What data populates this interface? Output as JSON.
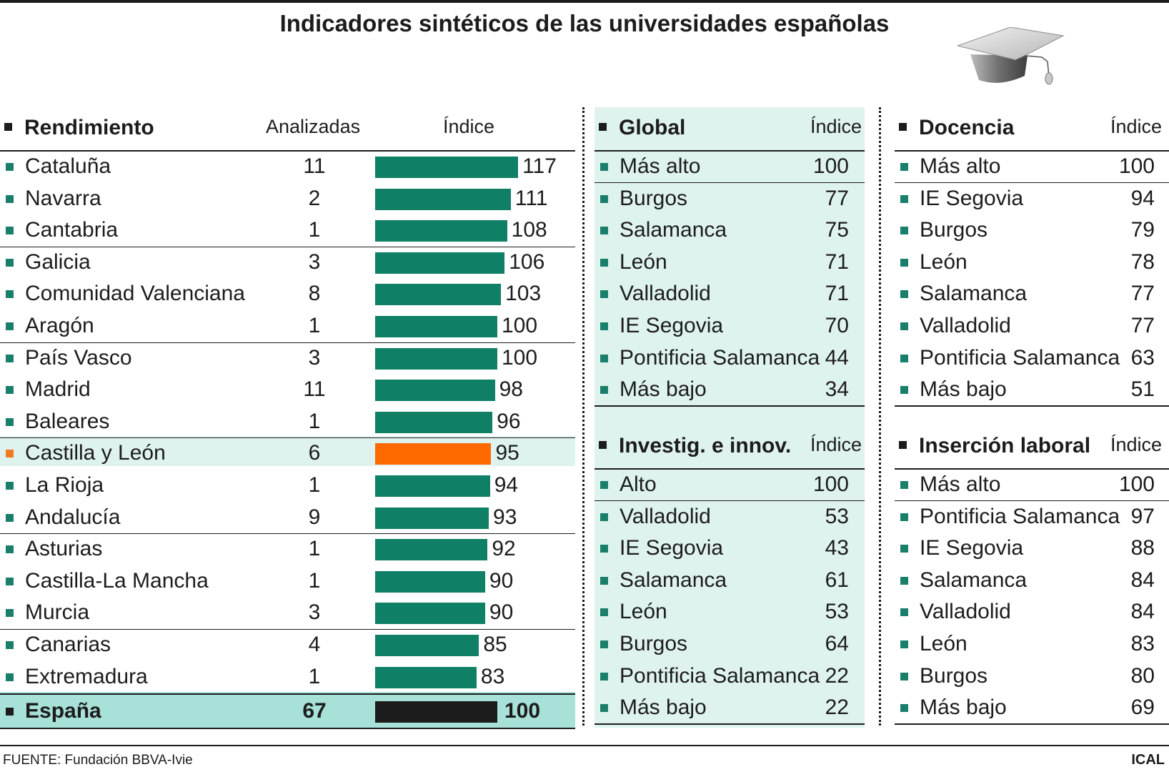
{
  "title": "Indicadores sintéticos de las universidades españolas",
  "colors": {
    "bar": "#0f7f66",
    "highlight_bar": "#ff6a00",
    "total_bar": "#1c1c1c",
    "highlight_bg": "#dff3ee",
    "total_bg": "#a7e1d8"
  },
  "rendimiento": {
    "title": "Rendimiento",
    "col_count_header": "Analizadas",
    "col_index_header": "Índice",
    "total": {
      "label": "España",
      "count": "67",
      "value": 100
    }
  },
  "chart_data": [
    {
      "type": "bar",
      "title": "Rendimiento",
      "categories": [
        "Cataluña",
        "Navarra",
        "Cantabria",
        "Galicia",
        "Comunidad Valenciana",
        "Aragón",
        "País Vasco",
        "Madrid",
        "Baleares",
        "Castilla y León",
        "La Rioja",
        "Andalucía",
        "Asturias",
        "Castilla-La Mancha",
        "Murcia",
        "Canarias",
        "Extremadura"
      ],
      "analizadas": [
        11,
        2,
        1,
        3,
        8,
        1,
        3,
        11,
        1,
        6,
        1,
        9,
        1,
        1,
        3,
        4,
        1
      ],
      "values": [
        117,
        111,
        108,
        106,
        103,
        100,
        100,
        98,
        96,
        95,
        94,
        93,
        92,
        90,
        90,
        85,
        83
      ],
      "highlight": "Castilla y León",
      "total": {
        "label": "España",
        "analizadas": 67,
        "value": 100
      }
    },
    {
      "type": "table",
      "title": "Global",
      "index_header": "Índice",
      "rows": [
        [
          "Más alto",
          100
        ],
        [
          "Burgos",
          77
        ],
        [
          "Salamanca",
          75
        ],
        [
          "León",
          71
        ],
        [
          "Valladolid",
          71
        ],
        [
          "IE Segovia",
          70
        ],
        [
          "Pontificia Salamanca",
          44
        ],
        [
          "Más bajo",
          34
        ]
      ]
    },
    {
      "type": "table",
      "title": "Investig. e innov.",
      "index_header": "Índice",
      "rows": [
        [
          "Alto",
          100
        ],
        [
          "Valladolid",
          53
        ],
        [
          "IE Segovia",
          43
        ],
        [
          "Salamanca",
          61
        ],
        [
          "León",
          53
        ],
        [
          "Burgos",
          64
        ],
        [
          "Pontificia Salamanca",
          22
        ],
        [
          "Más bajo",
          22
        ]
      ]
    },
    {
      "type": "table",
      "title": "Docencia",
      "index_header": "Índice",
      "rows": [
        [
          "Más alto",
          100
        ],
        [
          "IE Segovia",
          94
        ],
        [
          "Burgos",
          79
        ],
        [
          "León",
          78
        ],
        [
          "Salamanca",
          77
        ],
        [
          "Valladolid",
          77
        ],
        [
          "Pontificia Salamanca",
          63
        ],
        [
          "Más bajo",
          51
        ]
      ]
    },
    {
      "type": "table",
      "title": "Inserción laboral",
      "index_header": "Índice",
      "rows": [
        [
          "Más alto",
          100
        ],
        [
          "Pontificia Salamanca",
          97
        ],
        [
          "IE Segovia",
          88
        ],
        [
          "Salamanca",
          84
        ],
        [
          "Valladolid",
          84
        ],
        [
          "León",
          83
        ],
        [
          "Burgos",
          80
        ],
        [
          "Más bajo",
          69
        ]
      ]
    }
  ],
  "footer": {
    "source": "FUENTE: Fundación BBVA-Ivie",
    "brand": "ICAL"
  }
}
